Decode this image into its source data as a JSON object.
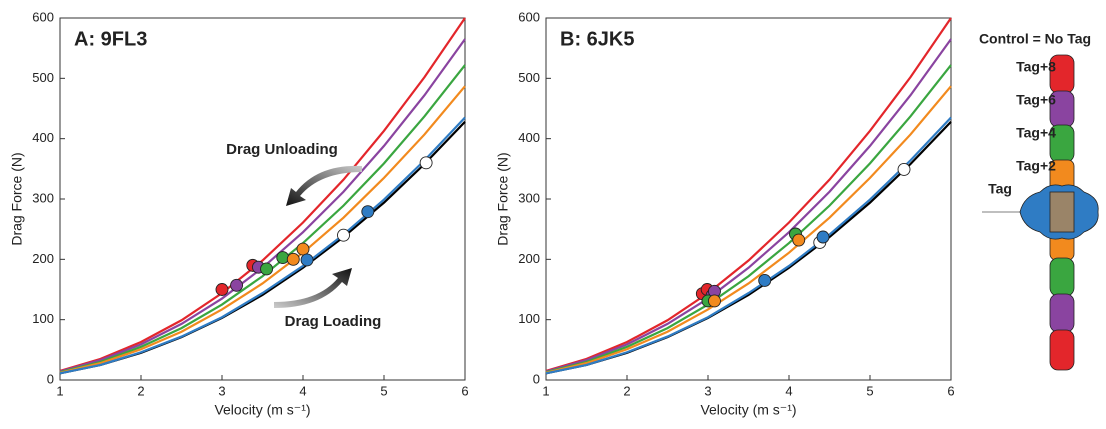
{
  "legend_labels": [
    "Control = No Tag",
    "Tag+8",
    "Tag+6",
    "Tag+4",
    "Tag+2",
    "Tag"
  ],
  "chart_data": [
    {
      "type": "line",
      "title": "A: 9FL3",
      "x_label": "Velocity (m s⁻¹)",
      "y_label": "Drag Force (N)",
      "x": [
        1,
        1.5,
        2,
        2.5,
        3,
        3.5,
        4,
        4.5,
        5,
        5.5,
        6
      ],
      "xlim": [
        1,
        6
      ],
      "ylim": [
        0,
        600
      ],
      "xticks": [
        1,
        2,
        3,
        4,
        5,
        6
      ],
      "yticks": [
        0,
        100,
        200,
        300,
        400,
        500,
        600
      ],
      "annotations": [
        "Drag Unloading",
        "Drag Loading"
      ],
      "series": [
        {
          "color": "#000000",
          "marker_fill": "#ffffff",
          "values": [
            11,
            25,
            45,
            71,
            103,
            141,
            186,
            237,
            294,
            358,
            428
          ],
          "marker_x": [
            4.5,
            5.52
          ],
          "marker_values": [
            240,
            360
          ]
        },
        {
          "color": "#e3262b",
          "marker_fill": "#e3262b",
          "values": [
            15,
            35,
            63,
            99,
            144,
            198,
            261,
            332,
            413,
            502,
            600
          ],
          "marker_x": [
            3.0,
            3.38
          ],
          "marker_values": [
            150,
            190
          ]
        },
        {
          "color": "#8a44a0",
          "marker_fill": "#8a44a0",
          "values": [
            14,
            33,
            59,
            93,
            135,
            186,
            245,
            312,
            388,
            472,
            565
          ],
          "marker_x": [
            3.18,
            3.45
          ],
          "marker_values": [
            157,
            187
          ]
        },
        {
          "color": "#3aa640",
          "marker_fill": "#3aa640",
          "values": [
            13,
            30,
            55,
            86,
            125,
            172,
            227,
            289,
            359,
            437,
            522
          ],
          "marker_x": [
            3.55,
            3.75
          ],
          "marker_values": [
            184,
            203
          ]
        },
        {
          "color": "#f28a1e",
          "marker_fill": "#f28a1e",
          "values": [
            12,
            28,
            51,
            80,
            117,
            160,
            211,
            269,
            335,
            407,
            487
          ],
          "marker_x": [
            3.88,
            4.0
          ],
          "marker_values": [
            200,
            217
          ]
        },
        {
          "color": "#2f7cc4",
          "marker_fill": "#2f7cc4",
          "values": [
            11,
            25,
            46,
            72,
            104,
            144,
            189,
            241,
            299,
            364,
            435
          ],
          "marker_x": [
            4.05,
            4.8
          ],
          "marker_values": [
            199,
            279
          ]
        }
      ]
    },
    {
      "type": "line",
      "title": "B: 6JK5",
      "x_label": "Velocity (m s⁻¹)",
      "y_label": "Drag Force (N)",
      "x": [
        1,
        1.5,
        2,
        2.5,
        3,
        3.5,
        4,
        4.5,
        5,
        5.5,
        6
      ],
      "xlim": [
        1,
        6
      ],
      "ylim": [
        0,
        600
      ],
      "xticks": [
        1,
        2,
        3,
        4,
        5,
        6
      ],
      "yticks": [
        0,
        100,
        200,
        300,
        400,
        500,
        600
      ],
      "series": [
        {
          "color": "#000000",
          "marker_fill": "#ffffff",
          "values": [
            11,
            25,
            45,
            71,
            103,
            141,
            186,
            237,
            294,
            358,
            428
          ],
          "marker_x": [
            4.38,
            5.42
          ],
          "marker_values": [
            228,
            349
          ]
        },
        {
          "color": "#e3262b",
          "marker_fill": "#e3262b",
          "values": [
            15,
            35,
            63,
            99,
            144,
            198,
            261,
            332,
            413,
            502,
            600
          ],
          "marker_x": [
            2.93,
            2.99
          ],
          "marker_values": [
            143,
            150
          ]
        },
        {
          "color": "#8a44a0",
          "marker_fill": "#8a44a0",
          "values": [
            14,
            33,
            59,
            93,
            135,
            186,
            245,
            312,
            388,
            472,
            565
          ],
          "marker_x": [
            3.05,
            3.08
          ],
          "marker_values": [
            140,
            147
          ]
        },
        {
          "color": "#3aa640",
          "marker_fill": "#3aa640",
          "values": [
            13,
            30,
            55,
            86,
            125,
            172,
            227,
            289,
            359,
            437,
            522
          ],
          "marker_x": [
            3.0,
            4.08
          ],
          "marker_values": [
            131,
            242
          ]
        },
        {
          "color": "#f28a1e",
          "marker_fill": "#f28a1e",
          "values": [
            12,
            28,
            51,
            80,
            117,
            160,
            211,
            269,
            335,
            407,
            487
          ],
          "marker_x": [
            3.08,
            4.12
          ],
          "marker_values": [
            131,
            232
          ]
        },
        {
          "color": "#2f7cc4",
          "marker_fill": "#2f7cc4",
          "values": [
            11,
            25,
            46,
            72,
            104,
            144,
            189,
            241,
            299,
            364,
            435
          ],
          "marker_x": [
            3.7,
            4.42
          ],
          "marker_values": [
            165,
            237
          ]
        }
      ]
    }
  ]
}
